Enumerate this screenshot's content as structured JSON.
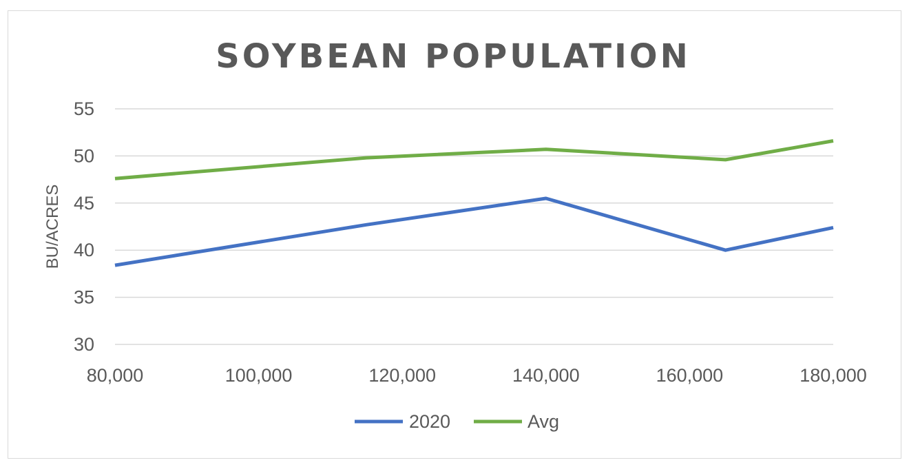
{
  "chart_data": {
    "type": "line",
    "title": "SOYBEAN POPULATION",
    "xlabel": "",
    "ylabel": "BU/ACRES",
    "xlim": [
      80000,
      180000
    ],
    "ylim": [
      30,
      55
    ],
    "x_ticks": [
      80000,
      100000,
      120000,
      140000,
      160000,
      180000
    ],
    "x_tick_labels": [
      "80,000",
      "100,000",
      "120,000",
      "140,000",
      "160,000",
      "180,000"
    ],
    "y_ticks": [
      30,
      35,
      40,
      45,
      50,
      55
    ],
    "y_tick_labels": [
      "30",
      "35",
      "40",
      "45",
      "50",
      "55"
    ],
    "grid": "horizontal",
    "legend_position": "bottom",
    "series": [
      {
        "name": "2020",
        "color": "#4472c4",
        "x": [
          80000,
          115000,
          140000,
          165000,
          180000
        ],
        "y": [
          38.4,
          42.7,
          45.5,
          40.0,
          42.4
        ]
      },
      {
        "name": "Avg",
        "color": "#70ad47",
        "x": [
          80000,
          115000,
          140000,
          165000,
          180000
        ],
        "y": [
          47.6,
          49.8,
          50.7,
          49.6,
          51.6
        ]
      }
    ]
  }
}
